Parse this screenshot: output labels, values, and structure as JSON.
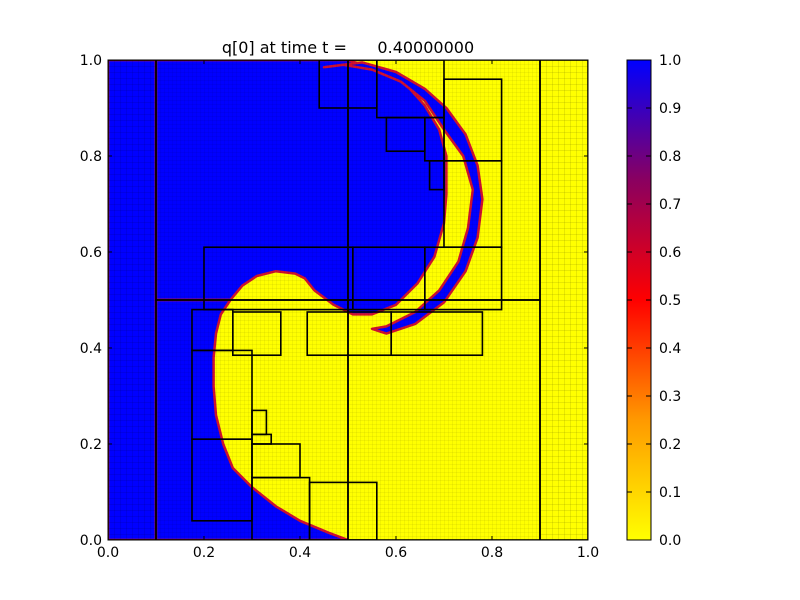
{
  "chart_data": {
    "type": "heatmap",
    "title": "q[0] at time t =      0.40000000",
    "xlabel": "",
    "ylabel": "",
    "xlim": [
      0.0,
      1.0
    ],
    "ylim": [
      0.0,
      1.0
    ],
    "x_ticks": [
      0.0,
      0.2,
      0.4,
      0.6,
      0.8,
      1.0
    ],
    "y_ticks": [
      0.0,
      0.2,
      0.4,
      0.6,
      0.8,
      1.0
    ],
    "x_tick_labels": [
      "0.0",
      "0.2",
      "0.4",
      "0.6",
      "0.8",
      "1.0"
    ],
    "y_tick_labels": [
      "0.0",
      "0.2",
      "0.4",
      "0.6",
      "0.8",
      "1.0"
    ],
    "colorbar": {
      "range": [
        0.0,
        1.0
      ],
      "ticks": [
        0.0,
        0.1,
        0.2,
        0.3,
        0.4,
        0.5,
        0.6,
        0.7,
        0.8,
        0.9,
        1.0
      ],
      "tick_labels": [
        "0.0",
        "0.1",
        "0.2",
        "0.3",
        "0.4",
        "0.5",
        "0.6",
        "0.7",
        "0.8",
        "0.9",
        "1.0"
      ],
      "colors": [
        "#ffff00",
        "#ff9900",
        "#ff0000",
        "#8a0060",
        "#0000ff"
      ]
    },
    "background_value": 0.0,
    "regions_value_1": [
      {
        "name": "left-strip",
        "polygon": [
          [
            0,
            0
          ],
          [
            0.1,
            0
          ],
          [
            0.1,
            1
          ],
          [
            0,
            1
          ]
        ]
      },
      {
        "name": "upper-lobe",
        "polygon": [
          [
            0.1,
            0.5
          ],
          [
            0.1,
            1.0
          ],
          [
            0.5,
            1.0
          ],
          [
            0.56,
            0.98
          ],
          [
            0.62,
            0.95
          ],
          [
            0.66,
            0.905
          ],
          [
            0.69,
            0.855
          ],
          [
            0.705,
            0.8
          ],
          [
            0.705,
            0.72
          ],
          [
            0.7,
            0.66
          ],
          [
            0.68,
            0.59
          ],
          [
            0.645,
            0.535
          ],
          [
            0.6,
            0.49
          ],
          [
            0.55,
            0.47
          ],
          [
            0.51,
            0.47
          ],
          [
            0.47,
            0.49
          ],
          [
            0.43,
            0.52
          ],
          [
            0.41,
            0.545
          ],
          [
            0.39,
            0.555
          ],
          [
            0.35,
            0.56
          ],
          [
            0.31,
            0.55
          ],
          [
            0.28,
            0.53
          ],
          [
            0.255,
            0.5
          ]
        ]
      },
      {
        "name": "lower-lobe",
        "polygon": [
          [
            0.1,
            0.5
          ],
          [
            0.255,
            0.5
          ],
          [
            0.235,
            0.47
          ],
          [
            0.225,
            0.43
          ],
          [
            0.22,
            0.38
          ],
          [
            0.22,
            0.32
          ],
          [
            0.225,
            0.26
          ],
          [
            0.24,
            0.2
          ],
          [
            0.26,
            0.15
          ],
          [
            0.3,
            0.11
          ],
          [
            0.35,
            0.07
          ],
          [
            0.4,
            0.04
          ],
          [
            0.46,
            0.015
          ],
          [
            0.5,
            0.0
          ],
          [
            0.1,
            0.0
          ]
        ]
      },
      {
        "name": "central-swirl",
        "polygon": [
          [
            0.45,
            0.985
          ],
          [
            0.49,
            0.99
          ],
          [
            0.55,
            0.98
          ],
          [
            0.61,
            0.955
          ],
          [
            0.66,
            0.915
          ],
          [
            0.7,
            0.855
          ],
          [
            0.74,
            0.8
          ],
          [
            0.76,
            0.73
          ],
          [
            0.75,
            0.65
          ],
          [
            0.73,
            0.58
          ],
          [
            0.69,
            0.52
          ],
          [
            0.64,
            0.475
          ],
          [
            0.58,
            0.445
          ],
          [
            0.55,
            0.44
          ],
          [
            0.58,
            0.43
          ],
          [
            0.64,
            0.45
          ],
          [
            0.7,
            0.495
          ],
          [
            0.745,
            0.56
          ],
          [
            0.77,
            0.63
          ],
          [
            0.78,
            0.71
          ],
          [
            0.77,
            0.78
          ],
          [
            0.745,
            0.845
          ],
          [
            0.705,
            0.9
          ],
          [
            0.66,
            0.94
          ],
          [
            0.6,
            0.975
          ],
          [
            0.53,
            0.995
          ]
        ]
      }
    ],
    "amr_patches": [
      {
        "x0": 0.0,
        "y0": 0.0,
        "x1": 0.1,
        "y1": 1.0,
        "level": 1
      },
      {
        "x0": 0.9,
        "y0": 0.0,
        "x1": 1.0,
        "y1": 1.0,
        "level": 1
      },
      {
        "x0": 0.1,
        "y0": 0.5,
        "x1": 0.5,
        "y1": 1.0,
        "level": 2
      },
      {
        "x0": 0.5,
        "y0": 0.5,
        "x1": 0.9,
        "y1": 1.0,
        "level": 2
      },
      {
        "x0": 0.1,
        "y0": 0.0,
        "x1": 0.5,
        "y1": 0.5,
        "level": 2
      },
      {
        "x0": 0.5,
        "y0": 0.0,
        "x1": 0.9,
        "y1": 0.5,
        "level": 2
      },
      {
        "x0": 0.44,
        "y0": 0.9,
        "x1": 0.56,
        "y1": 1.0,
        "level": 3
      },
      {
        "x0": 0.56,
        "y0": 0.88,
        "x1": 0.7,
        "y1": 1.0,
        "level": 3
      },
      {
        "x0": 0.58,
        "y0": 0.81,
        "x1": 0.66,
        "y1": 0.88,
        "level": 3
      },
      {
        "x0": 0.66,
        "y0": 0.79,
        "x1": 0.7,
        "y1": 0.88,
        "level": 3
      },
      {
        "x0": 0.7,
        "y0": 0.79,
        "x1": 0.82,
        "y1": 0.96,
        "level": 3
      },
      {
        "x0": 0.7,
        "y0": 0.61,
        "x1": 0.82,
        "y1": 0.79,
        "level": 3
      },
      {
        "x0": 0.67,
        "y0": 0.73,
        "x1": 0.7,
        "y1": 0.79,
        "level": 3
      },
      {
        "x0": 0.2,
        "y0": 0.48,
        "x1": 0.51,
        "y1": 0.61,
        "level": 3
      },
      {
        "x0": 0.51,
        "y0": 0.48,
        "x1": 0.66,
        "y1": 0.61,
        "level": 3
      },
      {
        "x0": 0.66,
        "y0": 0.48,
        "x1": 0.82,
        "y1": 0.61,
        "level": 3
      },
      {
        "x0": 0.175,
        "y0": 0.395,
        "x1": 0.26,
        "y1": 0.48,
        "level": 3
      },
      {
        "x0": 0.26,
        "y0": 0.385,
        "x1": 0.36,
        "y1": 0.475,
        "level": 3
      },
      {
        "x0": 0.415,
        "y0": 0.385,
        "x1": 0.59,
        "y1": 0.475,
        "level": 3
      },
      {
        "x0": 0.59,
        "y0": 0.385,
        "x1": 0.78,
        "y1": 0.475,
        "level": 3
      },
      {
        "x0": 0.175,
        "y0": 0.21,
        "x1": 0.3,
        "y1": 0.395,
        "level": 3
      },
      {
        "x0": 0.175,
        "y0": 0.04,
        "x1": 0.3,
        "y1": 0.21,
        "level": 3
      },
      {
        "x0": 0.3,
        "y0": 0.22,
        "x1": 0.33,
        "y1": 0.27,
        "level": 3
      },
      {
        "x0": 0.3,
        "y0": 0.2,
        "x1": 0.34,
        "y1": 0.22,
        "level": 3
      },
      {
        "x0": 0.3,
        "y0": 0.13,
        "x1": 0.4,
        "y1": 0.2,
        "level": 3
      },
      {
        "x0": 0.3,
        "y0": 0.0,
        "x1": 0.42,
        "y1": 0.13,
        "level": 3
      },
      {
        "x0": 0.42,
        "y0": 0.0,
        "x1": 0.56,
        "y1": 0.12,
        "level": 3
      }
    ]
  }
}
